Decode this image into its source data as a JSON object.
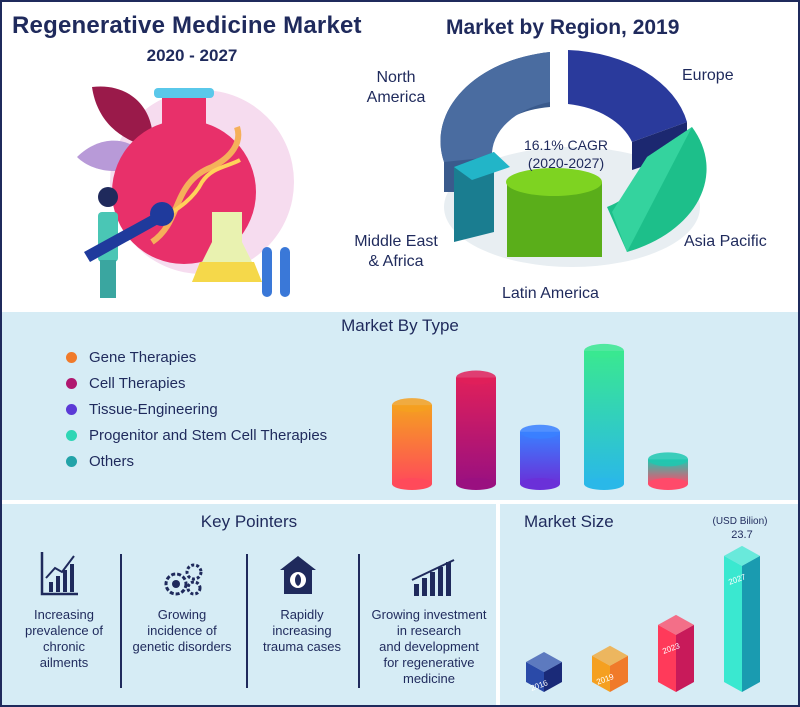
{
  "header": {
    "title": "Regenerative Medicine Market",
    "years": "2020 - 2027"
  },
  "region_chart": {
    "title": "Market by Region, 2019",
    "cagr_line1": "16.1% CAGR",
    "cagr_line2": "(2020-2027)",
    "regions": {
      "north_america_1": "North",
      "north_america_2": "America",
      "europe": "Europe",
      "asia_pacific": "Asia Pacific",
      "latin_america": "Latin America",
      "mea_1": "Middle East",
      "mea_2": "& Africa"
    }
  },
  "type_section": {
    "title": "Market By Type",
    "items": [
      {
        "label": "Gene Therapies",
        "color": "#f07a2a"
      },
      {
        "label": "Cell Therapies",
        "color": "#b0186f"
      },
      {
        "label": "Tissue-Engineering",
        "color": "#5b3ad6"
      },
      {
        "label": "Progenitor and Stem Cell Therapies",
        "color": "#2fd6b5"
      },
      {
        "label": "Others",
        "color": "#22a3a8"
      }
    ]
  },
  "chart_data": [
    {
      "type": "pie",
      "title": "Market by Region, 2019",
      "categories": [
        "North America",
        "Europe",
        "Asia Pacific",
        "Latin America",
        "Middle East & Africa"
      ],
      "values": [
        36,
        24,
        19,
        13,
        8
      ],
      "colors": [
        "#3a5a8c",
        "#2a3a9c",
        "#1dbf8a",
        "#7ed321",
        "#1a9bb0"
      ]
    },
    {
      "type": "bar",
      "title": "Market By Type",
      "categories": [
        "Gene Therapies",
        "Cell Therapies",
        "Tissue-Engineering",
        "Progenitor and Stem Cell Therapies",
        "Others"
      ],
      "values": [
        80,
        108,
        53,
        135,
        25
      ],
      "ylim": [
        0,
        140
      ]
    },
    {
      "type": "bar",
      "title": "Market Size",
      "categories": [
        "2016",
        "2019",
        "2023",
        "2027"
      ],
      "values": [
        4,
        7.5,
        12.5,
        23.7
      ],
      "unit": "(USD Bilion)",
      "ylim": [
        0,
        24
      ]
    }
  ],
  "key_pointers": {
    "title": "Key Pointers",
    "items": [
      {
        "lines": [
          "Increasing",
          "prevalence of",
          "chronic",
          "ailments"
        ],
        "icon": "chart-growth-icon"
      },
      {
        "lines": [
          "Growing",
          "incidence of",
          "genetic disorders"
        ],
        "icon": "gears-icon"
      },
      {
        "lines": [
          "Rapidly",
          "increasing",
          "trauma cases"
        ],
        "icon": "first-aid-home-icon"
      },
      {
        "lines": [
          "Growing investment",
          "in research",
          "and development",
          "for regenerative",
          "medicine"
        ],
        "icon": "bar-growth-icon"
      }
    ]
  },
  "market_size": {
    "title": "Market Size",
    "unit": "(USD Bilion)",
    "peak_value": "23.7"
  }
}
